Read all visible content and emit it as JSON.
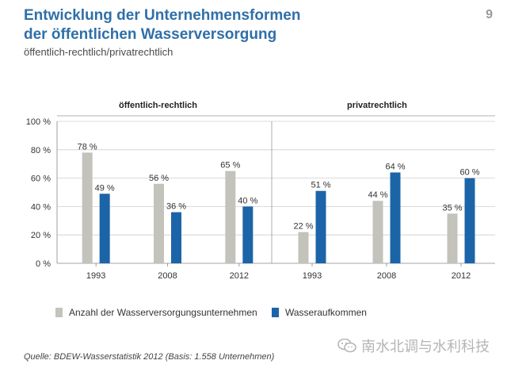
{
  "header": {
    "title_line1": "Entwicklung der Unternehmensformen",
    "title_line2": "der öffentlichen Wasserversorgung",
    "subtitle": "öffentlich-rechtlich/privatrechtlich",
    "page_number": "9"
  },
  "colors": {
    "series1": "#c3c3bb",
    "series2": "#1c64a8",
    "title": "#2f6fa8"
  },
  "chart_data": {
    "type": "bar",
    "yticks": [
      "0 %",
      "20 %",
      "40 %",
      "60 %",
      "80 %",
      "100 %"
    ],
    "ylim": [
      0,
      100
    ],
    "grid": true,
    "legend": "bottom",
    "panels": [
      {
        "title": "öffentlich-rechtlich",
        "categories": [
          "1993",
          "2008",
          "2012"
        ],
        "series": [
          {
            "name": "Anzahl der Wasserversorgungsunternehmen",
            "values": [
              78,
              56,
              65
            ],
            "labels": [
              "78 %",
              "56 %",
              "65 %"
            ]
          },
          {
            "name": "Wasseraufkommen",
            "values": [
              49,
              36,
              40
            ],
            "labels": [
              "49 %",
              "36 %",
              "40 %"
            ]
          }
        ]
      },
      {
        "title": "privatrechtlich",
        "categories": [
          "1993",
          "2008",
          "2012"
        ],
        "series": [
          {
            "name": "Anzahl der Wasserversorgungsunternehmen",
            "values": [
              22,
              44,
              35
            ],
            "labels": [
              "22 %",
              "44 %",
              "35 %"
            ]
          },
          {
            "name": "Wasseraufkommen",
            "values": [
              51,
              64,
              60
            ],
            "labels": [
              "51 %",
              "64 %",
              "60 %"
            ]
          }
        ]
      }
    ]
  },
  "legend": {
    "item1": "Anzahl der Wasserversorgungsunternehmen",
    "item2": "Wasseraufkommen"
  },
  "source": "Quelle: BDEW-Wasserstatistik 2012 (Basis: 1.558 Unternehmen)",
  "watermark": {
    "text": "南水北调与水利科技",
    "icon": "wechat-icon"
  }
}
